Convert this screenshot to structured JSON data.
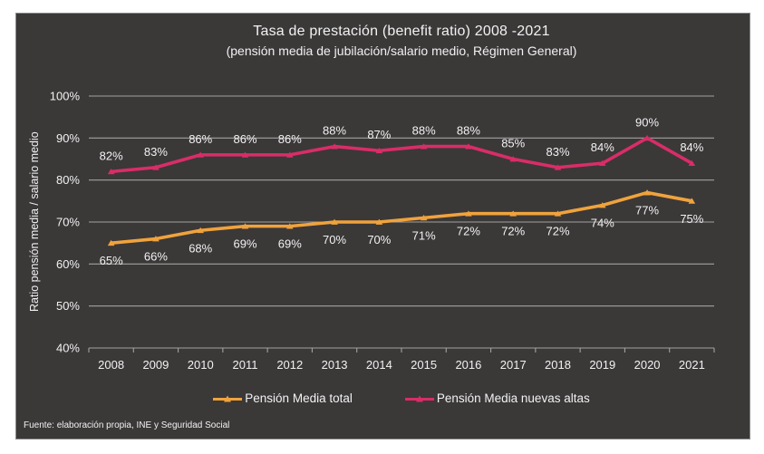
{
  "title": "Tasa de prestación (benefit ratio) 2008 -2021",
  "subtitle": "(pensión media de jubilación/salario medio, Régimen General)",
  "source": "Fuente: elaboración propia, INE y Seguridad Social",
  "colors": {
    "panel_background": "#3b3838",
    "panel_border": "#8a8a8a",
    "text": "#f2f2f2",
    "gridline": "#a3a0a0",
    "series_total": "#f0a33c",
    "series_nuevas_altas": "#d92d68"
  },
  "chart_data": {
    "type": "line",
    "categories": [
      "2008",
      "2009",
      "2010",
      "2011",
      "2012",
      "2013",
      "2014",
      "2015",
      "2016",
      "2017",
      "2018",
      "2019",
      "2020",
      "2021"
    ],
    "series": [
      {
        "name": "Pensión Media total",
        "color": "#f0a33c",
        "values": [
          65,
          66,
          68,
          69,
          69,
          70,
          70,
          71,
          72,
          72,
          72,
          74,
          77,
          75
        ],
        "label_position": "below"
      },
      {
        "name": "Pensión Media nuevas altas",
        "color": "#d92d68",
        "values": [
          82,
          83,
          86,
          86,
          86,
          88,
          87,
          88,
          88,
          85,
          83,
          84,
          90,
          84
        ],
        "label_position": "above"
      }
    ],
    "ylabel": "Ratio pensión media / salario medio",
    "xlabel": "",
    "ylim": [
      40,
      100
    ],
    "y_ticks": [
      40,
      50,
      60,
      70,
      80,
      90,
      100
    ],
    "tick_format": "percent",
    "grid": true,
    "data_labels": true,
    "legend_position": "bottom"
  }
}
